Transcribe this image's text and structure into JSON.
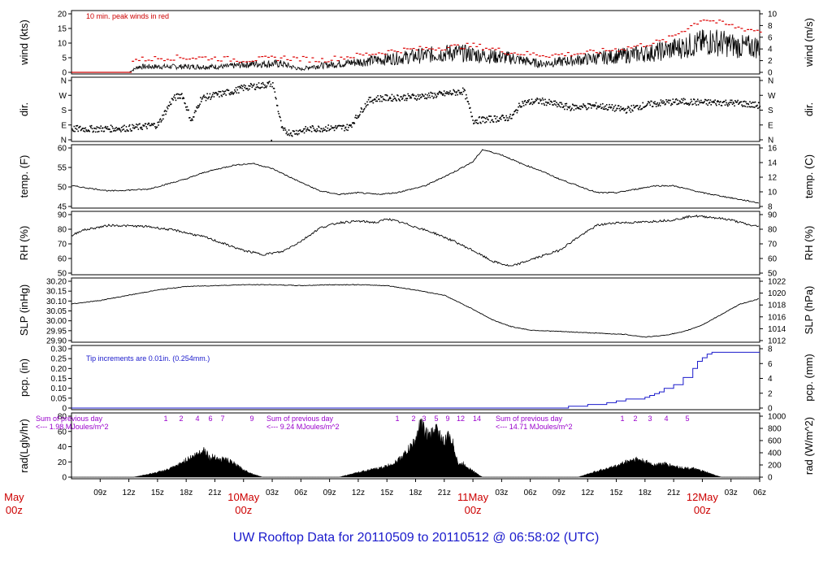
{
  "title": "UW Rooftop Data for 20110509  to  20110512 @ 06:58:02  (UTC)",
  "panels": [
    {
      "id": "wind",
      "left_label": "wind (kts)",
      "right_label": "wind (m/s)",
      "left_ticks": [
        "0",
        "5",
        "10",
        "15",
        "20"
      ],
      "right_ticks": [
        "0",
        "2",
        "4",
        "6",
        "8",
        "10"
      ],
      "note": "10 min. peak winds in red"
    },
    {
      "id": "dir",
      "left_label": "dir.",
      "right_label": "dir.",
      "left_ticks": [
        "N",
        "E",
        "S",
        "W",
        "N"
      ],
      "right_ticks": [
        "N",
        "E",
        "S",
        "W",
        "N"
      ]
    },
    {
      "id": "temp",
      "left_label": "temp. (F)",
      "right_label": "temp. (C)",
      "left_ticks": [
        "45",
        "50",
        "55",
        "60"
      ],
      "right_ticks": [
        "8",
        "10",
        "12",
        "14",
        "16"
      ]
    },
    {
      "id": "rh",
      "left_label": "RH (%)",
      "right_label": "RH (%)",
      "left_ticks": [
        "50",
        "60",
        "70",
        "80",
        "90"
      ],
      "right_ticks": [
        "50",
        "60",
        "70",
        "80",
        "90"
      ]
    },
    {
      "id": "slp",
      "left_label": "SLP (inHg)",
      "right_label": "SLP (hPa)",
      "left_ticks": [
        "29.90",
        "29.95",
        "30.00",
        "30.05",
        "30.10",
        "30.15",
        "30.20"
      ],
      "right_ticks": [
        "1012",
        "1014",
        "1016",
        "1018",
        "1020",
        "1022"
      ]
    },
    {
      "id": "pcp",
      "left_label": "pcp. (in)",
      "right_label": "pcp. (mm)",
      "left_ticks": [
        "0",
        "0.05",
        "0.10",
        "0.15",
        "0.20",
        "0.25",
        "0.30"
      ],
      "right_ticks": [
        "0",
        "2",
        "4",
        "6",
        "8"
      ],
      "note": "Tip increments are 0.01in. (0.254mm.)"
    },
    {
      "id": "rad",
      "left_label": "rad(Lgly/hr)",
      "right_label": "rad (W/m^2)",
      "left_ticks": [
        "0",
        "20",
        "40",
        "60",
        "80"
      ],
      "right_ticks": [
        "0",
        "200",
        "400",
        "600",
        "800",
        "1000"
      ]
    }
  ],
  "x_axis": {
    "hour_labels": [
      "09z",
      "12z",
      "15z",
      "18z",
      "21z",
      "03z",
      "06z",
      "09z",
      "12z",
      "15z",
      "18z",
      "21z",
      "03z",
      "06z",
      "09z",
      "12z",
      "15z",
      "18z",
      "21z",
      "03z",
      "06z"
    ],
    "day_labels": [
      {
        "month": "May",
        "hour": "00z",
        "full": "9May"
      },
      {
        "month": "10May",
        "hour": "00z"
      },
      {
        "month": "11May",
        "hour": "00z"
      },
      {
        "month": "12May",
        "hour": "00z"
      }
    ]
  },
  "rad_annotations": [
    {
      "line1": "Sum of previous day",
      "line2": "<--- 1.98 MJoules/m^2",
      "hours": [
        "1",
        "2",
        "4",
        "6",
        "7",
        "9"
      ]
    },
    {
      "line1": "Sum of previous day",
      "line2": "<--- 9.24 MJoules/m^2",
      "hours": [
        "1",
        "2",
        "3",
        "5",
        "9",
        "12",
        "14"
      ]
    },
    {
      "line1": "Sum of previous day",
      "line2": "<--- 14.71 MJoules/m^2",
      "hours": [
        "1",
        "2",
        "3",
        "4",
        "5"
      ]
    }
  ],
  "chart_data": {
    "type": "line",
    "x_unit": "hours since 20110509 06z",
    "x_range": [
      0,
      72
    ],
    "series": [
      {
        "name": "wind speed (kts)",
        "range": [
          0,
          24
        ],
        "x": [
          0,
          6,
          7,
          10,
          13,
          16,
          19,
          22,
          24,
          25,
          28,
          31,
          34,
          37,
          40,
          43,
          46,
          49,
          52,
          55,
          58,
          61,
          64,
          67,
          70,
          72
        ],
        "y": [
          0,
          0,
          2,
          2,
          2,
          2,
          3,
          3,
          1,
          2,
          3,
          4,
          5,
          6,
          7,
          6,
          5,
          3,
          4,
          5,
          6,
          7,
          9,
          11,
          9,
          9
        ]
      },
      {
        "name": "10 min peak wind (kts)",
        "range": [
          0,
          24
        ],
        "x": [
          6,
          10,
          14,
          18,
          22,
          26,
          30,
          34,
          38,
          42,
          46,
          50,
          54,
          58,
          62,
          66,
          70,
          72
        ],
        "y": [
          5,
          6,
          6,
          5,
          6,
          5,
          7,
          9,
          10,
          11,
          8,
          7,
          8,
          10,
          13,
          22,
          18,
          17
        ]
      },
      {
        "name": "wind direction (deg)",
        "range": [
          0,
          360
        ],
        "x": [
          0,
          3,
          6,
          9,
          10.5,
          11.5,
          12.5,
          13.5,
          15,
          17,
          18,
          20,
          21,
          22,
          23,
          24,
          25,
          27,
          29,
          31,
          32,
          34,
          36,
          38,
          40,
          41,
          42,
          44,
          46,
          47,
          49,
          52,
          55,
          58,
          60,
          62,
          64,
          66,
          68,
          70,
          72
        ],
        "y": [
          70,
          70,
          75,
          95,
          250,
          280,
          115,
          255,
          275,
          300,
          320,
          335,
          345,
          60,
          45,
          60,
          70,
          75,
          80,
          240,
          255,
          260,
          265,
          275,
          290,
          300,
          120,
          130,
          140,
          225,
          240,
          200,
          210,
          185,
          215,
          230,
          235,
          230,
          230,
          225,
          210
        ]
      },
      {
        "name": "temperature (F)",
        "range": [
          45,
          62
        ],
        "x": [
          0,
          4,
          8,
          12,
          14,
          17,
          19,
          21,
          24,
          26,
          28,
          30,
          32,
          34,
          37,
          40,
          42,
          43,
          45,
          47,
          49,
          51,
          53,
          55,
          57,
          59,
          61,
          63,
          66,
          68,
          70,
          72
        ],
        "y": [
          51,
          49.5,
          50,
          53,
          55,
          57,
          57.5,
          56,
          52,
          49.5,
          48.5,
          49,
          48.5,
          49,
          51,
          55,
          58,
          61.5,
          60,
          57.5,
          55.5,
          53,
          51,
          49,
          49,
          50,
          51,
          51,
          49,
          48,
          47,
          46
        ]
      },
      {
        "name": "relative humidity (%)",
        "range": [
          48,
          92
        ],
        "x": [
          0,
          1,
          4,
          8,
          11,
          14,
          16,
          18,
          20,
          22,
          24,
          26,
          28,
          30,
          32,
          33,
          35,
          38,
          40,
          42,
          44,
          46,
          48,
          51,
          53,
          55,
          57,
          59,
          61,
          63,
          65,
          67,
          69,
          71,
          72
        ],
        "y": [
          76,
          80,
          84,
          83,
          80,
          75,
          70,
          65,
          62,
          64,
          72,
          82,
          86,
          87,
          86,
          89,
          85,
          78,
          72,
          65,
          57,
          53,
          58,
          65,
          75,
          84,
          86,
          86,
          87,
          88,
          91,
          90,
          88,
          84,
          83
        ]
      },
      {
        "name": "sea level pressure (inHg)",
        "range": [
          29.88,
          30.22
        ],
        "x": [
          0,
          3,
          6,
          9,
          12,
          15,
          18,
          21,
          24,
          27,
          30,
          33,
          36,
          39,
          42,
          44,
          46,
          48,
          50,
          52,
          54,
          56,
          58,
          60,
          62,
          64,
          66,
          68,
          70,
          72
        ],
        "y": [
          30.09,
          30.11,
          30.14,
          30.17,
          30.19,
          30.195,
          30.2,
          30.2,
          30.195,
          30.2,
          30.2,
          30.195,
          30.17,
          30.14,
          30.06,
          30.0,
          29.96,
          29.94,
          29.935,
          29.93,
          29.925,
          29.92,
          29.915,
          29.9,
          29.91,
          29.93,
          29.97,
          30.03,
          30.09,
          30.12
        ]
      },
      {
        "name": "precipitation accumulation (in)",
        "range": [
          0,
          0.33
        ],
        "x": [
          0,
          50,
          52,
          54,
          56,
          57,
          58,
          59,
          60,
          60.5,
          61,
          61.5,
          62,
          63,
          64,
          65,
          65.5,
          66,
          66.5,
          67,
          72
        ],
        "y": [
          0,
          0,
          0.01,
          0.02,
          0.03,
          0.04,
          0.05,
          0.05,
          0.06,
          0.07,
          0.08,
          0.09,
          0.11,
          0.13,
          0.17,
          0.22,
          0.26,
          0.28,
          0.3,
          0.31,
          0.31
        ]
      },
      {
        "name": "solar radiation (Lgly/hr)",
        "range": [
          0,
          100
        ],
        "x": [
          5,
          6.5,
          9,
          10,
          11,
          12,
          13,
          13.5,
          14,
          14.5,
          15,
          15.5,
          16,
          17,
          18,
          19,
          20,
          28,
          30,
          32,
          33,
          34,
          35,
          36,
          36.5,
          37,
          37.5,
          38,
          38.5,
          39,
          39.5,
          40,
          40.5,
          41,
          42,
          43,
          53,
          55,
          57,
          58,
          59,
          60,
          61,
          62,
          63,
          64,
          65,
          66,
          67,
          68
        ],
        "y": [
          0,
          0,
          8,
          12,
          18,
          28,
          36,
          42,
          45,
          30,
          35,
          28,
          30,
          22,
          12,
          5,
          0,
          0,
          8,
          14,
          18,
          25,
          40,
          60,
          88,
          75,
          65,
          82,
          70,
          55,
          70,
          50,
          20,
          22,
          10,
          0,
          0,
          10,
          18,
          25,
          30,
          25,
          20,
          22,
          18,
          15,
          14,
          10,
          5,
          0
        ]
      }
    ]
  }
}
